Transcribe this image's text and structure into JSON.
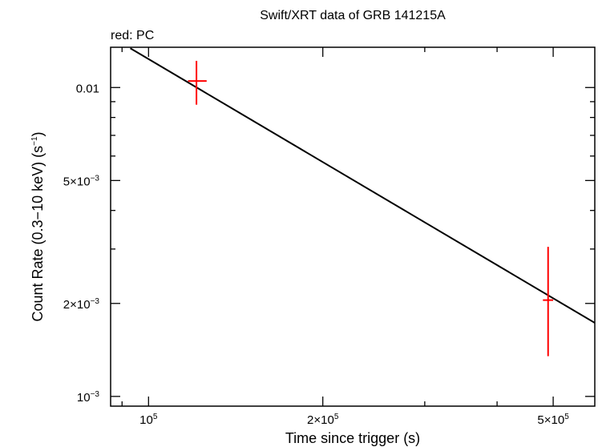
{
  "chart_data": {
    "type": "scatter",
    "title": "Swift/XRT data of GRB 141215A",
    "annotation": "red: PC",
    "xlabel": "Time since trigger (s)",
    "ylabel": {
      "main": "Count Rate (0.3−10 keV) (s",
      "sup": "−1",
      "close": ")"
    },
    "xscale": "log",
    "yscale": "log",
    "xlim": [
      86000,
      590000
    ],
    "ylim": [
      0.00093,
      0.0135
    ],
    "grid": false,
    "xticks": [
      {
        "value": 100000,
        "mant": "10",
        "exp": "5"
      },
      {
        "value": 200000,
        "mant": "2×10",
        "exp": "5"
      },
      {
        "value": 500000,
        "mant": "5×10",
        "exp": "5"
      }
    ],
    "yticks": [
      {
        "value": 0.001,
        "mant": "10",
        "exp": "−3"
      },
      {
        "value": 0.002,
        "mant": "2×10",
        "exp": "−3"
      },
      {
        "value": 0.005,
        "mant": "5×10",
        "exp": "−3"
      },
      {
        "value": 0.01,
        "mant": "0.01",
        "exp": ""
      }
    ],
    "series": [
      {
        "color": "#ff0000",
        "points": [
          {
            "x": 121000,
            "xerr": [
              117000,
              126000
            ],
            "y": 0.0105,
            "yerr": [
              0.0088,
              0.0122
            ]
          },
          {
            "x": 490000,
            "xerr": [
              480000,
              500000
            ],
            "y": 0.00205,
            "yerr": [
              0.00135,
              0.00305
            ]
          }
        ]
      }
    ],
    "model": {
      "color": "#000000",
      "x": [
        93000,
        590000
      ],
      "y": [
        0.0134,
        0.00173
      ]
    }
  }
}
